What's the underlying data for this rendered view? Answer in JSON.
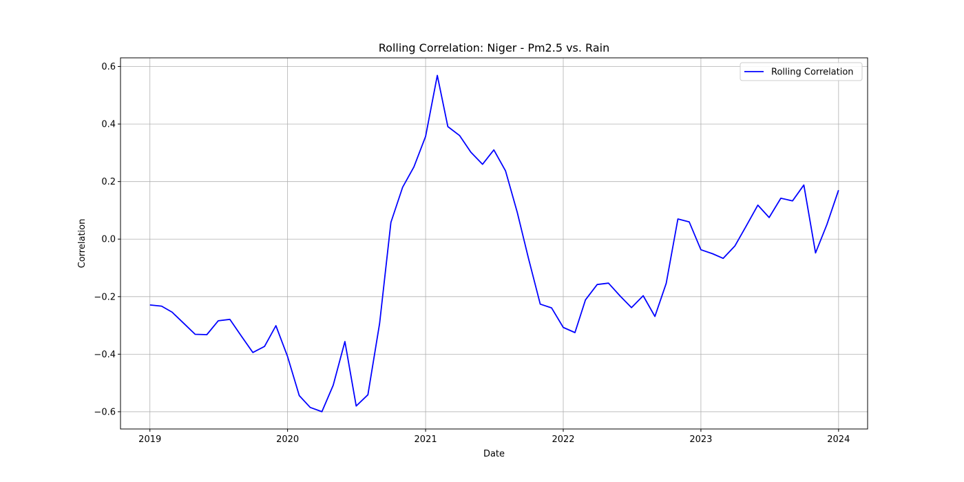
{
  "chart_data": {
    "type": "line",
    "title": "Rolling Correlation: Niger - Pm2.5 vs. Rain",
    "xlabel": "Date",
    "ylabel": "Correlation",
    "x_ticks": [
      "2019",
      "2020",
      "2021",
      "2022",
      "2023",
      "2024"
    ],
    "y_ticks": [
      "−0.6",
      "−0.4",
      "−0.2",
      "0.0",
      "0.2",
      "0.4",
      "0.6"
    ],
    "xlim": [
      "2018-10-15",
      "2024-03-18"
    ],
    "ylim": [
      -0.66,
      0.63
    ],
    "grid": true,
    "legend_position": "top-right",
    "series": [
      {
        "name": "Rolling Correlation",
        "color": "#0000ff",
        "x": [
          "2019-01-01",
          "2019-02-01",
          "2019-03-01",
          "2019-04-01",
          "2019-05-01",
          "2019-06-01",
          "2019-07-01",
          "2019-08-01",
          "2019-09-01",
          "2019-10-01",
          "2019-11-01",
          "2019-12-01",
          "2020-01-01",
          "2020-02-01",
          "2020-03-01",
          "2020-04-01",
          "2020-05-01",
          "2020-06-01",
          "2020-07-01",
          "2020-08-01",
          "2020-09-01",
          "2020-10-01",
          "2020-11-01",
          "2020-12-01",
          "2021-01-01",
          "2021-02-01",
          "2021-03-01",
          "2021-04-01",
          "2021-05-01",
          "2021-06-01",
          "2021-07-01",
          "2021-08-01",
          "2021-09-01",
          "2021-10-01",
          "2021-11-01",
          "2021-12-01",
          "2022-01-01",
          "2022-02-01",
          "2022-03-01",
          "2022-04-01",
          "2022-05-01",
          "2022-06-01",
          "2022-07-01",
          "2022-08-01",
          "2022-09-01",
          "2022-10-01",
          "2022-11-01",
          "2022-12-01",
          "2023-01-01",
          "2023-02-01",
          "2023-03-01",
          "2023-04-01",
          "2023-05-01",
          "2023-06-01",
          "2023-07-01",
          "2023-08-01",
          "2023-09-01",
          "2023-10-01",
          "2023-11-01",
          "2023-12-01",
          "2024-01-01"
        ],
        "y": [
          -0.229,
          -0.233,
          -0.254,
          -0.293,
          -0.331,
          -0.332,
          -0.284,
          -0.279,
          -0.338,
          -0.394,
          -0.373,
          -0.301,
          -0.408,
          -0.544,
          -0.585,
          -0.6,
          -0.508,
          -0.356,
          -0.58,
          -0.541,
          -0.293,
          0.058,
          0.18,
          0.251,
          0.357,
          0.569,
          0.391,
          0.36,
          0.302,
          0.26,
          0.31,
          0.237,
          0.093,
          -0.068,
          -0.226,
          -0.239,
          -0.307,
          -0.325,
          -0.211,
          -0.158,
          -0.153,
          -0.198,
          -0.238,
          -0.197,
          -0.269,
          -0.154,
          0.07,
          0.06,
          -0.037,
          -0.051,
          -0.067,
          -0.024,
          0.045,
          0.118,
          0.075,
          0.142,
          0.133,
          0.188,
          -0.048,
          0.05,
          0.17
        ]
      }
    ]
  }
}
